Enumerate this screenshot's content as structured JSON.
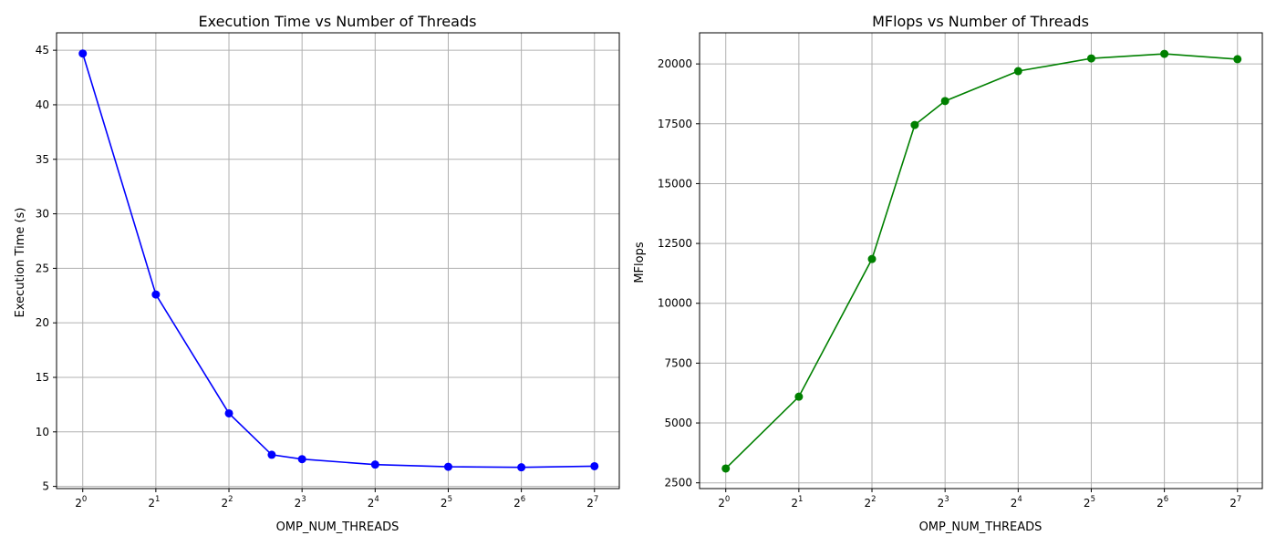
{
  "chart_data": [
    {
      "type": "line",
      "title": "Execution Time vs Number of Threads",
      "xlabel": "OMP_NUM_THREADS",
      "ylabel": "Execution Time (s)",
      "xscale": "log2",
      "xlim": [
        0.78,
        162
      ],
      "ylim": [
        4.8,
        46.6
      ],
      "xticks": [
        {
          "base": "2",
          "exp": "0",
          "value": 1
        },
        {
          "base": "2",
          "exp": "1",
          "value": 2
        },
        {
          "base": "2",
          "exp": "2",
          "value": 4
        },
        {
          "base": "2",
          "exp": "3",
          "value": 8
        },
        {
          "base": "2",
          "exp": "4",
          "value": 16
        },
        {
          "base": "2",
          "exp": "5",
          "value": 32
        },
        {
          "base": "2",
          "exp": "6",
          "value": 64
        },
        {
          "base": "2",
          "exp": "7",
          "value": 128
        }
      ],
      "yticks": [
        "5",
        "10",
        "15",
        "20",
        "25",
        "30",
        "35",
        "40",
        "45"
      ],
      "ytick_values": [
        5,
        10,
        15,
        20,
        25,
        30,
        35,
        40,
        45
      ],
      "grid": true,
      "color": "#0000ff",
      "series": [
        {
          "x": [
            1,
            2,
            4,
            6,
            8,
            16,
            32,
            64,
            128
          ],
          "y": [
            44.7,
            22.6,
            11.7,
            7.9,
            7.5,
            7.0,
            6.8,
            6.75,
            6.85
          ]
        }
      ]
    },
    {
      "type": "line",
      "title": "MFlops vs Number of Threads",
      "xlabel": "OMP_NUM_THREADS",
      "ylabel": "MFlops",
      "xscale": "log2",
      "xlim": [
        0.78,
        162
      ],
      "ylim": [
        2260,
        21300
      ],
      "xticks": [
        {
          "base": "2",
          "exp": "0",
          "value": 1
        },
        {
          "base": "2",
          "exp": "1",
          "value": 2
        },
        {
          "base": "2",
          "exp": "2",
          "value": 4
        },
        {
          "base": "2",
          "exp": "3",
          "value": 8
        },
        {
          "base": "2",
          "exp": "4",
          "value": 16
        },
        {
          "base": "2",
          "exp": "5",
          "value": 32
        },
        {
          "base": "2",
          "exp": "6",
          "value": 64
        },
        {
          "base": "2",
          "exp": "7",
          "value": 128
        }
      ],
      "yticks": [
        "2500",
        "5000",
        "7500",
        "10000",
        "12500",
        "15000",
        "17500",
        "20000"
      ],
      "ytick_values": [
        2500,
        5000,
        7500,
        10000,
        12500,
        15000,
        17500,
        20000
      ],
      "grid": true,
      "color": "#008000",
      "series": [
        {
          "x": [
            1,
            2,
            4,
            6,
            8,
            16,
            32,
            64,
            128
          ],
          "y": [
            3100,
            6100,
            11850,
            17450,
            18450,
            19700,
            20230,
            20420,
            20200
          ]
        }
      ]
    }
  ]
}
